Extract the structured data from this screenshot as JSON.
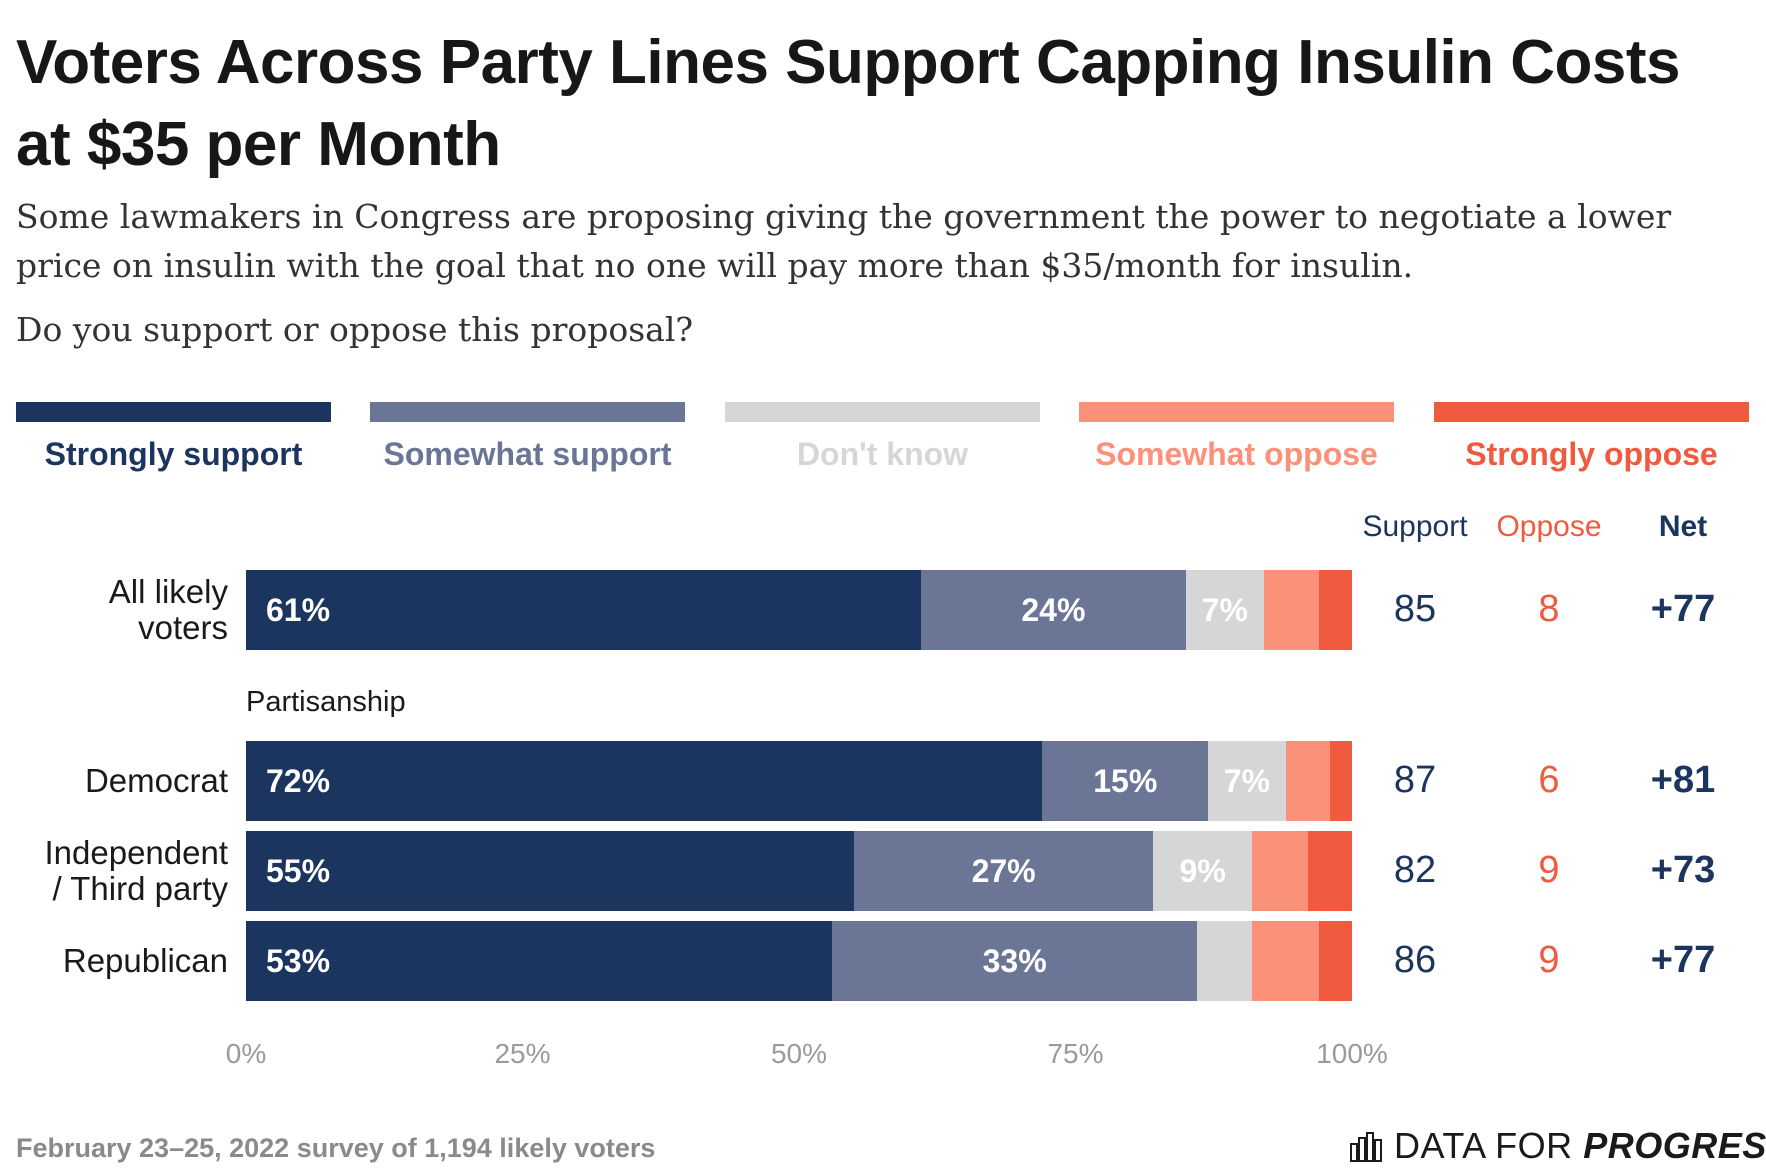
{
  "title": "Voters Across Party Lines Support Capping Insulin Costs at $35 per Month",
  "subtitle": "Some lawmakers in Congress are proposing giving the government the power to negotiate a lower price on insulin with the goal that no one will pay more than $35/month for insulin.",
  "question": "Do you support or oppose this proposal?",
  "legend": [
    {
      "label": "Strongly support",
      "color": "#1c355e",
      "text_color": "#1c355e"
    },
    {
      "label": "Somewhat support",
      "color": "#6b7596",
      "text_color": "#6b7596"
    },
    {
      "label": "Don't know",
      "color": "#d6d6d6",
      "text_color": "#d6d6d6"
    },
    {
      "label": "Somewhat oppose",
      "color": "#fc917a",
      "text_color": "#fc917a"
    },
    {
      "label": "Strongly oppose",
      "color": "#f05a3e",
      "text_color": "#f05a3e"
    }
  ],
  "columns": {
    "support": "Support",
    "oppose": "Oppose",
    "net": "Net"
  },
  "section_label": "Partisanship",
  "footer": {
    "note": "February 23–25, 2022 survey of 1,194 likely voters",
    "logo_plain": "DATA FOR",
    "logo_bold": "PROGRESS"
  },
  "chart_data": {
    "type": "bar",
    "orientation": "horizontal",
    "stacked": true,
    "xlim": [
      0,
      100
    ],
    "xticks": [
      "0%",
      "25%",
      "50%",
      "75%",
      "100%"
    ],
    "categories": [
      "All likely voters",
      "Democrat",
      "Independent / Third party",
      "Republican"
    ],
    "series": [
      {
        "name": "Strongly support",
        "values": [
          61,
          72,
          55,
          53
        ]
      },
      {
        "name": "Somewhat support",
        "values": [
          24,
          15,
          27,
          33
        ]
      },
      {
        "name": "Don't know",
        "values": [
          7,
          7,
          9,
          5
        ]
      },
      {
        "name": "Somewhat oppose",
        "values": [
          5,
          4,
          5,
          6
        ]
      },
      {
        "name": "Strongly oppose",
        "values": [
          3,
          2,
          4,
          3
        ]
      }
    ],
    "segment_labels": [
      [
        "61%",
        "24%",
        "7%",
        "",
        ""
      ],
      [
        "72%",
        "15%",
        "7%",
        "",
        ""
      ],
      [
        "55%",
        "27%",
        "9%",
        "",
        ""
      ],
      [
        "53%",
        "33%",
        "",
        "",
        ""
      ]
    ],
    "label_lines": [
      [
        "All likely",
        "voters"
      ],
      [
        "Democrat"
      ],
      [
        "Independent",
        "/ Third party"
      ],
      [
        "Republican"
      ]
    ],
    "support": [
      "85",
      "87",
      "82",
      "86"
    ],
    "oppose": [
      "8",
      "6",
      "9",
      "9"
    ],
    "net": [
      "+77",
      "+81",
      "+73",
      "+77"
    ]
  }
}
